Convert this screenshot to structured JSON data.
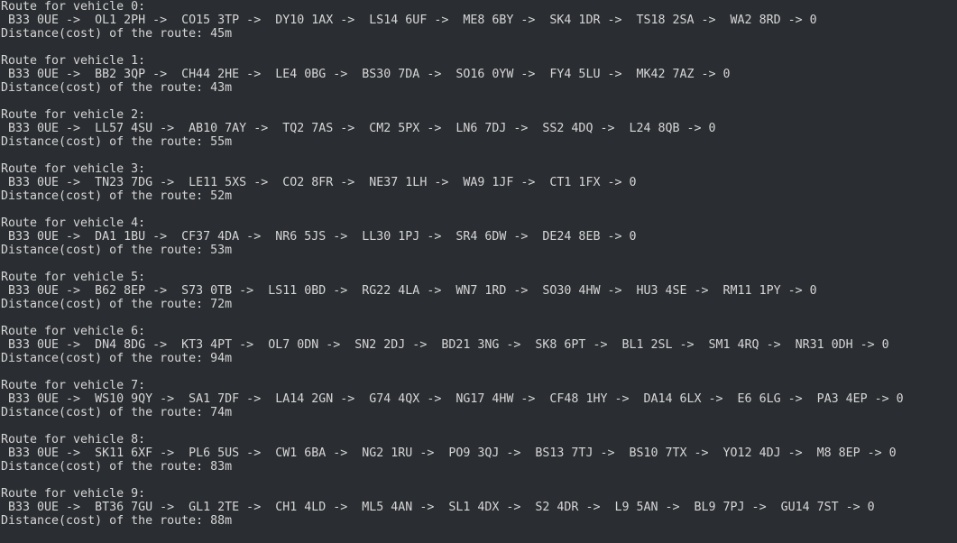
{
  "routes": [
    {
      "title": "Route for vehicle 0:",
      "path": " B33 0UE ->  OL1 2PH ->  CO15 3TP ->  DY10 1AX ->  LS14 6UF ->  ME8 6BY ->  SK4 1DR ->  TS18 2SA ->  WA2 8RD -> 0",
      "distance": "Distance(cost) of the route: 45m"
    },
    {
      "title": "Route for vehicle 1:",
      "path": " B33 0UE ->  BB2 3QP ->  CH44 2HE ->  LE4 0BG ->  BS30 7DA ->  SO16 0YW ->  FY4 5LU ->  MK42 7AZ -> 0",
      "distance": "Distance(cost) of the route: 43m"
    },
    {
      "title": "Route for vehicle 2:",
      "path": " B33 0UE ->  LL57 4SU ->  AB10 7AY ->  TQ2 7AS ->  CM2 5PX ->  LN6 7DJ ->  SS2 4DQ ->  L24 8QB -> 0",
      "distance": "Distance(cost) of the route: 55m"
    },
    {
      "title": "Route for vehicle 3:",
      "path": " B33 0UE ->  TN23 7DG ->  LE11 5XS ->  CO2 8FR ->  NE37 1LH ->  WA9 1JF ->  CT1 1FX -> 0",
      "distance": "Distance(cost) of the route: 52m"
    },
    {
      "title": "Route for vehicle 4:",
      "path": " B33 0UE ->  DA1 1BU ->  CF37 4DA ->  NR6 5JS ->  LL30 1PJ ->  SR4 6DW ->  DE24 8EB -> 0",
      "distance": "Distance(cost) of the route: 53m"
    },
    {
      "title": "Route for vehicle 5:",
      "path": " B33 0UE ->  B62 8EP ->  S73 0TB ->  LS11 0BD ->  RG22 4LA ->  WN7 1RD ->  SO30 4HW ->  HU3 4SE ->  RM11 1PY -> 0",
      "distance": "Distance(cost) of the route: 72m"
    },
    {
      "title": "Route for vehicle 6:",
      "path": " B33 0UE ->  DN4 8DG ->  KT3 4PT ->  OL7 0DN ->  SN2 2DJ ->  BD21 3NG ->  SK8 6PT ->  BL1 2SL ->  SM1 4RQ ->  NR31 0DH -> 0",
      "distance": "Distance(cost) of the route: 94m"
    },
    {
      "title": "Route for vehicle 7:",
      "path": " B33 0UE ->  WS10 9QY ->  SA1 7DF ->  LA14 2GN ->  G74 4QX ->  NG17 4HW ->  CF48 1HY ->  DA14 6LX ->  E6 6LG ->  PA3 4EP -> 0",
      "distance": "Distance(cost) of the route: 74m"
    },
    {
      "title": "Route for vehicle 8:",
      "path": " B33 0UE ->  SK11 6XF ->  PL6 5US ->  CW1 6BA ->  NG2 1RU ->  PO9 3QJ ->  BS13 7TJ ->  BS10 7TX ->  YO12 4DJ ->  M8 8EP -> 0",
      "distance": "Distance(cost) of the route: 83m"
    },
    {
      "title": "Route for vehicle 9:",
      "path": " B33 0UE ->  BT36 7GU ->  GL1 2TE ->  CH1 4LD ->  ML5 4AN ->  SL1 4DX ->  S2 4DR ->  L9 5AN ->  BL9 7PJ ->  GU14 7ST -> 0",
      "distance": "Distance(cost) of the route: 88m"
    }
  ]
}
